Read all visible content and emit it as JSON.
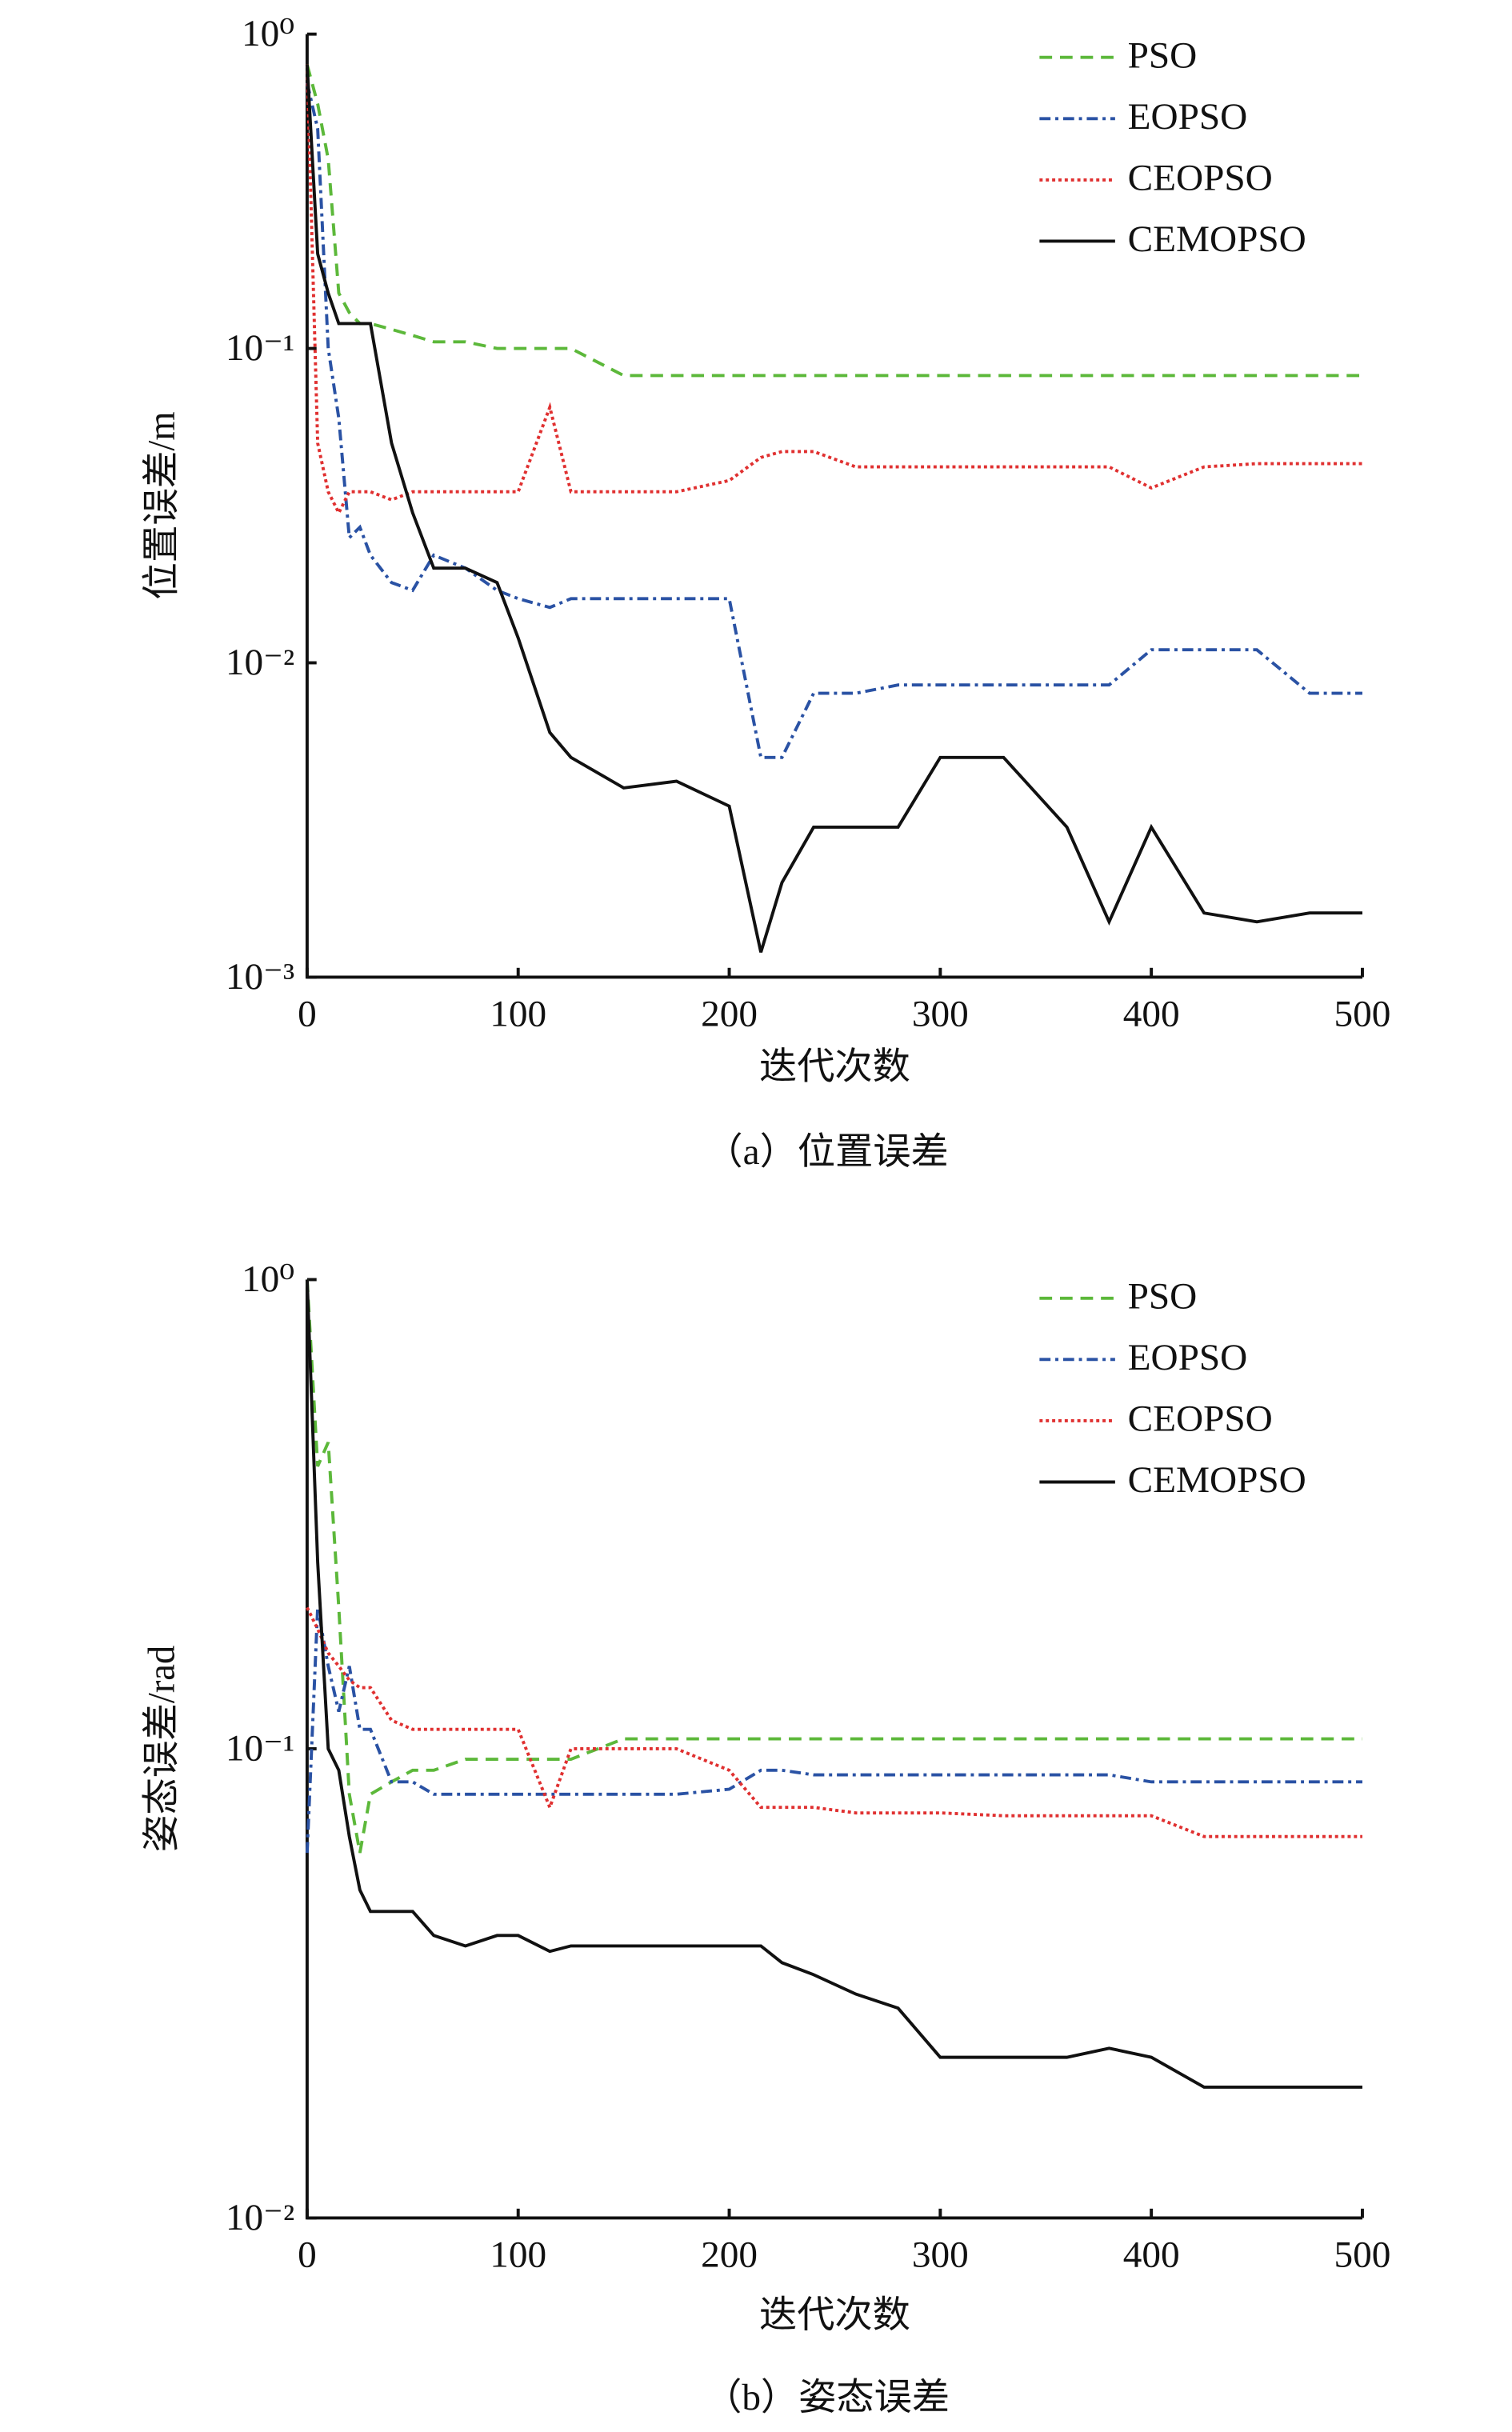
{
  "chart_data": [
    {
      "type": "line",
      "ylabel": "位置误差/m",
      "xlabel": "迭代次数",
      "caption": "（a）位置误差",
      "yscale": "log",
      "xlim": [
        0,
        500
      ],
      "xticks": [
        0,
        100,
        200,
        300,
        400,
        500
      ],
      "ylim": [
        0.001,
        1
      ],
      "yticks": [
        {
          "value": 1,
          "label": "10⁰"
        },
        {
          "value": 0.1,
          "label": "10⁻¹"
        },
        {
          "value": 0.01,
          "label": "10⁻²"
        },
        {
          "value": 0.001,
          "label": "10⁻³"
        }
      ],
      "x": [
        0,
        5,
        10,
        15,
        20,
        25,
        30,
        40,
        50,
        60,
        75,
        90,
        100,
        115,
        125,
        150,
        175,
        200,
        215,
        225,
        240,
        260,
        280,
        300,
        330,
        360,
        380,
        400,
        425,
        450,
        475,
        500
      ],
      "series": [
        {
          "name": "PSO",
          "color": "#5cb83a",
          "values": [
            0.8,
            0.6,
            0.4,
            0.15,
            0.13,
            0.12,
            0.12,
            0.115,
            0.11,
            0.105,
            0.105,
            0.1,
            0.1,
            0.1,
            0.1,
            0.082,
            0.082,
            0.082,
            0.082,
            0.082,
            0.082,
            0.082,
            0.082,
            0.082,
            0.082,
            0.082,
            0.082,
            0.082,
            0.082,
            0.082,
            0.082,
            0.082
          ]
        },
        {
          "name": "EOPSO",
          "color": "#2a52a4",
          "values": [
            0.7,
            0.5,
            0.1,
            0.06,
            0.025,
            0.027,
            0.022,
            0.018,
            0.017,
            0.022,
            0.02,
            0.017,
            0.016,
            0.015,
            0.016,
            0.016,
            0.016,
            0.016,
            0.005,
            0.005,
            0.008,
            0.008,
            0.0085,
            0.0085,
            0.0085,
            0.0085,
            0.0085,
            0.011,
            0.011,
            0.011,
            0.008,
            0.008
          ]
        },
        {
          "name": "CEOPSO",
          "color": "#e03030",
          "values": [
            0.8,
            0.05,
            0.035,
            0.03,
            0.035,
            0.035,
            0.035,
            0.033,
            0.035,
            0.035,
            0.035,
            0.035,
            0.035,
            0.065,
            0.035,
            0.035,
            0.035,
            0.038,
            0.045,
            0.047,
            0.047,
            0.042,
            0.042,
            0.042,
            0.042,
            0.042,
            0.042,
            0.036,
            0.042,
            0.043,
            0.043,
            0.043
          ]
        },
        {
          "name": "CEMOPSO",
          "color": "#111111",
          "values": [
            0.8,
            0.2,
            0.15,
            0.12,
            0.12,
            0.12,
            0.12,
            0.05,
            0.03,
            0.02,
            0.02,
            0.018,
            0.012,
            0.006,
            0.005,
            0.004,
            0.0042,
            0.0035,
            0.0012,
            0.002,
            0.003,
            0.003,
            0.003,
            0.005,
            0.005,
            0.003,
            0.0015,
            0.003,
            0.0016,
            0.0015,
            0.0016,
            0.0016
          ]
        }
      ]
    },
    {
      "type": "line",
      "ylabel": "姿态误差/rad",
      "xlabel": "迭代次数",
      "caption": "（b）姿态误差",
      "yscale": "log",
      "xlim": [
        0,
        500
      ],
      "xticks": [
        0,
        100,
        200,
        300,
        400,
        500
      ],
      "ylim": [
        0.01,
        1
      ],
      "yticks": [
        {
          "value": 1,
          "label": "10⁰"
        },
        {
          "value": 0.1,
          "label": "10⁻¹"
        },
        {
          "value": 0.01,
          "label": "10⁻²"
        }
      ],
      "x": [
        0,
        5,
        10,
        15,
        20,
        25,
        30,
        40,
        50,
        60,
        75,
        90,
        100,
        115,
        125,
        150,
        175,
        200,
        215,
        225,
        240,
        260,
        280,
        300,
        330,
        360,
        380,
        400,
        425,
        450,
        475,
        500
      ],
      "series": [
        {
          "name": "PSO",
          "color": "#5cb83a",
          "values": [
            1,
            0.4,
            0.45,
            0.2,
            0.08,
            0.06,
            0.08,
            0.085,
            0.09,
            0.09,
            0.095,
            0.095,
            0.095,
            0.095,
            0.095,
            0.105,
            0.105,
            0.105,
            0.105,
            0.105,
            0.105,
            0.105,
            0.105,
            0.105,
            0.105,
            0.105,
            0.105,
            0.105,
            0.105,
            0.105,
            0.105,
            0.105
          ]
        },
        {
          "name": "EOPSO",
          "color": "#2a52a4",
          "values": [
            0.06,
            0.2,
            0.15,
            0.12,
            0.15,
            0.11,
            0.11,
            0.085,
            0.085,
            0.08,
            0.08,
            0.08,
            0.08,
            0.08,
            0.08,
            0.08,
            0.08,
            0.082,
            0.09,
            0.09,
            0.088,
            0.088,
            0.088,
            0.088,
            0.088,
            0.088,
            0.088,
            0.085,
            0.085,
            0.085,
            0.085,
            0.085
          ]
        },
        {
          "name": "CEOPSO",
          "color": "#e03030",
          "values": [
            0.2,
            0.18,
            0.16,
            0.15,
            0.14,
            0.135,
            0.135,
            0.115,
            0.11,
            0.11,
            0.11,
            0.11,
            0.11,
            0.075,
            0.1,
            0.1,
            0.1,
            0.09,
            0.075,
            0.075,
            0.075,
            0.073,
            0.073,
            0.073,
            0.072,
            0.072,
            0.072,
            0.072,
            0.065,
            0.065,
            0.065,
            0.065
          ]
        },
        {
          "name": "CEMOPSO",
          "color": "#111111",
          "values": [
            1,
            0.25,
            0.1,
            0.09,
            0.065,
            0.05,
            0.045,
            0.045,
            0.045,
            0.04,
            0.038,
            0.04,
            0.04,
            0.037,
            0.038,
            0.038,
            0.038,
            0.038,
            0.038,
            0.035,
            0.033,
            0.03,
            0.028,
            0.022,
            0.022,
            0.022,
            0.023,
            0.022,
            0.019,
            0.019,
            0.019,
            0.019
          ]
        }
      ]
    }
  ]
}
